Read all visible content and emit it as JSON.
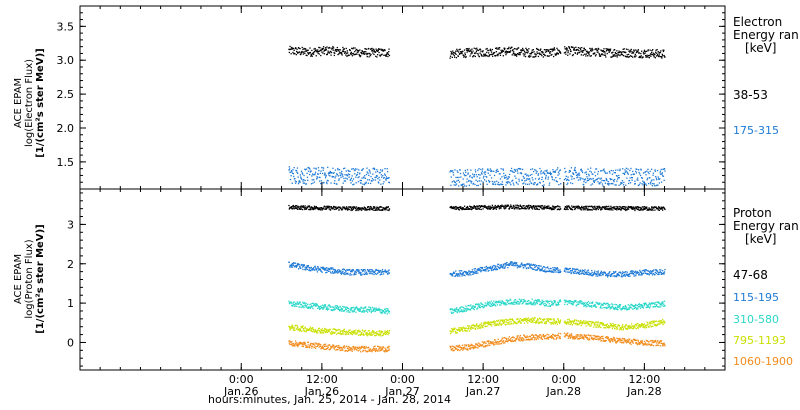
{
  "xaxis": {
    "label": "hours:minutes, Jan. 25, 2014 - Jan. 28, 2014",
    "ticks": [
      {
        "t": 24,
        "time": "0:00",
        "date": "Jan.26"
      },
      {
        "t": 36,
        "time": "12:00",
        "date": "Jan.26"
      },
      {
        "t": 48,
        "time": "0:00",
        "date": "Jan.27"
      },
      {
        "t": 60,
        "time": "12:00",
        "date": "Jan.27"
      },
      {
        "t": 72,
        "time": "0:00",
        "date": "Jan.28"
      },
      {
        "t": 84,
        "time": "12:00",
        "date": "Jan.28"
      }
    ]
  },
  "electron_panel": {
    "ylabel_line1": "ACE EPAM",
    "ylabel_line2": "log(Electron Flux)",
    "ylabel_line3": "[1/(cm²s ster MeV)]",
    "legend_title_1": "Electron",
    "legend_title_2": "Energy ran",
    "legend_unit": "[keV]",
    "channels": [
      {
        "label": "38-53",
        "color": "#000000"
      },
      {
        "label": "175-315",
        "color": "#1e7ad6"
      }
    ]
  },
  "proton_panel": {
    "ylabel_line1": "ACE EPAM",
    "ylabel_line2": "log(Proton Flux)",
    "ylabel_line3": "[1/(cm²s ster MeV)]",
    "legend_title_1": "Proton",
    "legend_title_2": "Energy ran",
    "legend_unit": "[keV]",
    "channels": [
      {
        "label": "47-68",
        "color": "#000000"
      },
      {
        "label": "115-195",
        "color": "#1e7ad6"
      },
      {
        "label": "310-580",
        "color": "#2ad7c9"
      },
      {
        "label": "795-1193",
        "color": "#c9e000"
      },
      {
        "label": "1060-1900",
        "color": "#f28c1c"
      }
    ]
  },
  "chart_data": [
    {
      "type": "scatter",
      "xlabel": "hours:minutes, Jan. 25, 2014 - Jan. 28, 2014",
      "ylabel": "log(Electron Flux) [1/(cm²s ster MeV)]",
      "xlim": [
        0,
        96
      ],
      "ylim": [
        1.1,
        3.8
      ],
      "yticks": [
        1.5,
        2.0,
        2.5,
        3.0,
        3.5
      ],
      "gaps_hours": [
        [
          46,
          55
        ],
        [
          71.5,
          72
        ]
      ],
      "segments_hours": [
        [
          31,
          46
        ],
        [
          55,
          71.5
        ],
        [
          72,
          87
        ]
      ],
      "series": [
        {
          "name": "38-53",
          "color": "#000000",
          "x": [
            31,
            34,
            37,
            40,
            43,
            46,
            55,
            58,
            61,
            64,
            67,
            70,
            72,
            75,
            78,
            81,
            84,
            87
          ],
          "y": [
            3.15,
            3.13,
            3.15,
            3.13,
            3.12,
            3.12,
            3.1,
            3.12,
            3.13,
            3.14,
            3.12,
            3.12,
            3.15,
            3.13,
            3.12,
            3.12,
            3.11,
            3.1
          ]
        },
        {
          "name": "175-315",
          "color": "#1e7ad6",
          "x": [
            31,
            34,
            37,
            40,
            43,
            46,
            55,
            58,
            61,
            64,
            67,
            70,
            72,
            75,
            78,
            81,
            84,
            87
          ],
          "y": [
            1.32,
            1.3,
            1.31,
            1.3,
            1.3,
            1.29,
            1.27,
            1.28,
            1.3,
            1.29,
            1.28,
            1.29,
            1.3,
            1.3,
            1.28,
            1.29,
            1.28,
            1.29
          ]
        }
      ]
    },
    {
      "type": "scatter",
      "xlabel": "hours:minutes, Jan. 25, 2014 - Jan. 28, 2014",
      "ylabel": "log(Proton Flux) [1/(cm²s ster MeV)]",
      "xlim": [
        0,
        96
      ],
      "ylim": [
        -0.7,
        3.9
      ],
      "yticks": [
        0,
        1,
        2,
        3
      ],
      "gaps_hours": [
        [
          46,
          55
        ],
        [
          71.5,
          72
        ]
      ],
      "segments_hours": [
        [
          31,
          46
        ],
        [
          55,
          71.5
        ],
        [
          72,
          87
        ]
      ],
      "series": [
        {
          "name": "47-68",
          "color": "#000000",
          "x": [
            31,
            34,
            37,
            40,
            43,
            46,
            55,
            58,
            61,
            64,
            67,
            70,
            72,
            75,
            78,
            81,
            84,
            87
          ],
          "y": [
            3.45,
            3.44,
            3.43,
            3.42,
            3.42,
            3.42,
            3.43,
            3.44,
            3.45,
            3.46,
            3.45,
            3.44,
            3.44,
            3.43,
            3.43,
            3.42,
            3.42,
            3.42
          ]
        },
        {
          "name": "115-195",
          "color": "#1e7ad6",
          "x": [
            31,
            34,
            37,
            40,
            43,
            46,
            55,
            58,
            61,
            64,
            67,
            70,
            72,
            75,
            78,
            81,
            84,
            87
          ],
          "y": [
            2.0,
            1.9,
            1.85,
            1.8,
            1.8,
            1.8,
            1.75,
            1.8,
            1.9,
            2.0,
            1.95,
            1.85,
            1.85,
            1.8,
            1.75,
            1.75,
            1.8,
            1.8
          ]
        },
        {
          "name": "310-580",
          "color": "#2ad7c9",
          "x": [
            31,
            34,
            37,
            40,
            43,
            46,
            55,
            58,
            61,
            64,
            67,
            70,
            72,
            75,
            78,
            81,
            84,
            87
          ],
          "y": [
            1.0,
            0.95,
            0.9,
            0.85,
            0.85,
            0.8,
            0.8,
            0.9,
            1.0,
            1.05,
            1.05,
            1.0,
            1.05,
            1.0,
            0.95,
            0.9,
            0.95,
            1.0
          ]
        },
        {
          "name": "795-1193",
          "color": "#c9e000",
          "x": [
            31,
            34,
            37,
            40,
            43,
            46,
            55,
            58,
            61,
            64,
            67,
            70,
            72,
            75,
            78,
            81,
            84,
            87
          ],
          "y": [
            0.4,
            0.35,
            0.3,
            0.28,
            0.25,
            0.25,
            0.3,
            0.38,
            0.5,
            0.55,
            0.58,
            0.55,
            0.55,
            0.5,
            0.45,
            0.4,
            0.45,
            0.55
          ]
        },
        {
          "name": "1060-1900",
          "color": "#f28c1c",
          "x": [
            31,
            34,
            37,
            40,
            43,
            46,
            55,
            58,
            61,
            64,
            67,
            70,
            72,
            75,
            78,
            81,
            84,
            87
          ],
          "y": [
            0.0,
            -0.05,
            -0.1,
            -0.15,
            -0.15,
            -0.15,
            -0.15,
            -0.1,
            0.0,
            0.1,
            0.15,
            0.15,
            0.2,
            0.15,
            0.1,
            0.05,
            0.0,
            0.0
          ]
        }
      ]
    }
  ]
}
